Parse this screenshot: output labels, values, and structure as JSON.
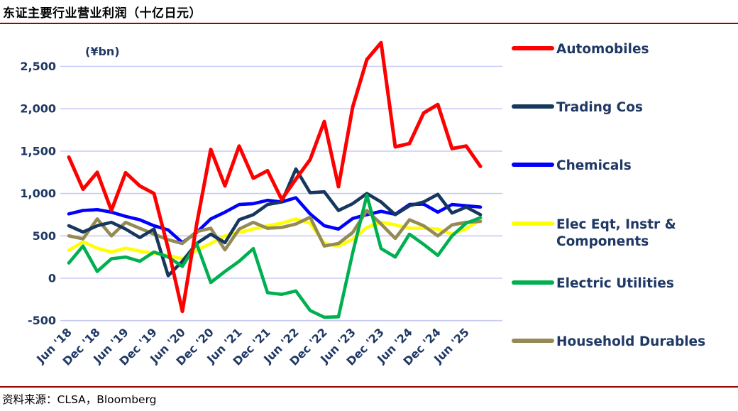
{
  "header": {
    "title": "东证主要行业营业利润（十亿日元）"
  },
  "footer": {
    "source": "资料来源：CLSA，Bloomberg"
  },
  "colors": {
    "rule": "#A00000",
    "axis_text": "#1F3864",
    "gridline": "#C9CBF4",
    "title_text": "#000000"
  },
  "chart_data": {
    "type": "line",
    "title": "东证主要行业营业利润（十亿日元）",
    "unit_label": "(¥bn)",
    "ylabel": "",
    "xlabel": "",
    "ylim": [
      -500,
      2500
    ],
    "grid": "horizontal",
    "legend_position": "right",
    "y_ticks": [
      2500,
      2000,
      1500,
      1000,
      500,
      0,
      -500
    ],
    "y_tick_labels": [
      "2,500",
      "2,000",
      "1,500",
      "1,000",
      "500",
      "0",
      "-500"
    ],
    "x_tick_labels": [
      "Jun '18",
      "Dec '18",
      "Jun '19",
      "Dec '19",
      "Jun '20",
      "Dec '20",
      "Jun '21",
      "Dec '21",
      "Jun '22",
      "Dec '22",
      "Jun '23",
      "Dec '23",
      "Jun '24",
      "Dec '24",
      "Jun '25"
    ],
    "x_all_quarters": [
      "Jun '18",
      "Sep '18",
      "Dec '18",
      "Mar '19",
      "Jun '19",
      "Sep '19",
      "Dec '19",
      "Mar '20",
      "Jun '20",
      "Sep '20",
      "Dec '20",
      "Mar '21",
      "Jun '21",
      "Sep '21",
      "Dec '21",
      "Mar '22",
      "Jun '22",
      "Sep '22",
      "Dec '22",
      "Mar '23",
      "Jun '23",
      "Sep '23",
      "Dec '23",
      "Mar '24",
      "Jun '24",
      "Sep '24",
      "Dec '24",
      "Mar '25",
      "Jun '25",
      "Sep '25"
    ],
    "draw_order": [
      "Chemicals",
      "Elec Eqt, Instr & Components",
      "Household Durables",
      "Trading Cos",
      "Electric Utilities",
      "Automobiles"
    ],
    "series": [
      {
        "name": "Automobiles",
        "label_lines": [
          "Automobiles"
        ],
        "color": "#FF0000",
        "values": [
          1430,
          1050,
          1250,
          800,
          1245,
          1090,
          1000,
          350,
          -390,
          630,
          1520,
          1090,
          1560,
          1180,
          1270,
          930,
          1170,
          1400,
          1850,
          1080,
          2020,
          2580,
          2780,
          1550,
          1590,
          1950,
          2050,
          1530,
          1560,
          1320
        ]
      },
      {
        "name": "Trading Cos",
        "label_lines": [
          "Trading Cos"
        ],
        "color": "#17375E",
        "values": [
          620,
          545,
          620,
          660,
          580,
          480,
          580,
          30,
          200,
          410,
          520,
          420,
          690,
          750,
          870,
          900,
          1290,
          1010,
          1020,
          800,
          880,
          1000,
          900,
          750,
          855,
          900,
          990,
          770,
          840,
          750
        ]
      },
      {
        "name": "Chemicals",
        "label_lines": [
          "Chemicals"
        ],
        "color": "#0000FF",
        "values": [
          760,
          800,
          810,
          780,
          730,
          690,
          620,
          570,
          420,
          540,
          700,
          780,
          870,
          880,
          920,
          900,
          950,
          760,
          620,
          580,
          705,
          750,
          790,
          755,
          870,
          875,
          780,
          870,
          855,
          840
        ]
      },
      {
        "name": "Elec Eqt, Instr & Components",
        "label_lines": [
          "Elec Eqt, Instr &",
          "Components"
        ],
        "color": "#FFFF00",
        "values": [
          330,
          430,
          355,
          310,
          355,
          320,
          295,
          270,
          230,
          330,
          410,
          500,
          540,
          580,
          620,
          650,
          700,
          650,
          410,
          380,
          460,
          600,
          660,
          630,
          590,
          590,
          580,
          520,
          585,
          690
        ]
      },
      {
        "name": "Electric Utilities",
        "label_lines": [
          "Electric Utilities"
        ],
        "color": "#00B050",
        "values": [
          180,
          380,
          80,
          230,
          250,
          200,
          310,
          250,
          140,
          410,
          -50,
          80,
          200,
          350,
          -170,
          -190,
          -150,
          -380,
          -460,
          -455,
          300,
          980,
          350,
          250,
          520,
          400,
          270,
          500,
          650,
          715
        ]
      },
      {
        "name": "Household Durables",
        "label_lines": [
          "Household Durables"
        ],
        "color": "#948A54",
        "values": [
          500,
          465,
          700,
          500,
          660,
          590,
          520,
          455,
          410,
          550,
          590,
          335,
          580,
          660,
          590,
          600,
          640,
          720,
          380,
          410,
          540,
          800,
          640,
          470,
          690,
          620,
          500,
          630,
          660,
          670
        ]
      }
    ]
  }
}
